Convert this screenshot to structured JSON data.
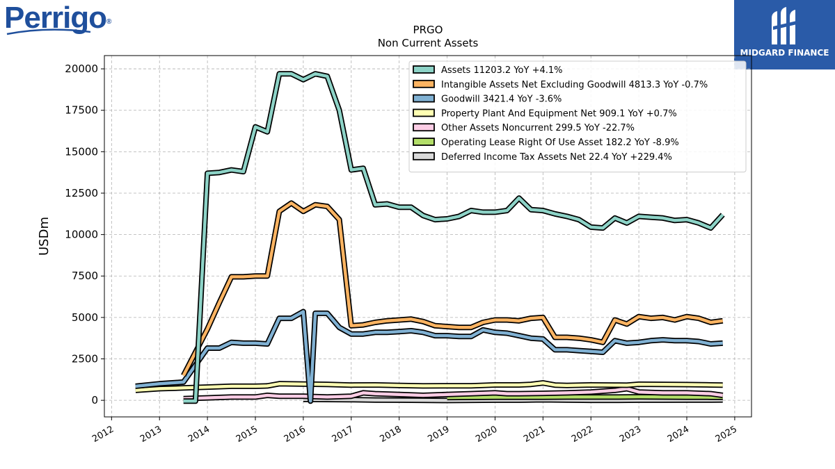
{
  "brand_left": {
    "name": "Perrigo",
    "reg_mark": "®",
    "color": "#1f4f9c"
  },
  "brand_right": {
    "name": "MIDGARD FINANCE",
    "bg_color": "#2a5ba8"
  },
  "chart_data": {
    "type": "line",
    "title": "PRGO",
    "subtitle": "Non Current  Assets",
    "ylabel": "USDm",
    "xlabel": "",
    "xlim": [
      2011.85,
      2025.35
    ],
    "ylim": [
      -1000,
      20800
    ],
    "yticks": [
      0,
      2500,
      5000,
      7500,
      10000,
      12500,
      15000,
      17500,
      20000
    ],
    "xticks": [
      2012,
      2013,
      2014,
      2015,
      2016,
      2017,
      2018,
      2019,
      2020,
      2021,
      2022,
      2023,
      2024,
      2025
    ],
    "grid": true,
    "legend_position": "top-right",
    "series": [
      {
        "name": "Assets",
        "legend": "Assets  11203.2 YoY +4.1%",
        "color": "#8dd3c7",
        "x": [
          2013.5,
          2013.75,
          2014.0,
          2014.25,
          2014.5,
          2014.75,
          2015.0,
          2015.25,
          2015.5,
          2015.75,
          2016.0,
          2016.25,
          2016.5,
          2016.75,
          2017.0,
          2017.25,
          2017.5,
          2017.75,
          2018.0,
          2018.25,
          2018.5,
          2018.75,
          2019.0,
          2019.25,
          2019.5,
          2019.75,
          2020.0,
          2020.25,
          2020.5,
          2020.75,
          2021.0,
          2021.25,
          2021.5,
          2021.75,
          2022.0,
          2022.25,
          2022.5,
          2022.75,
          2023.0,
          2023.25,
          2023.5,
          2023.75,
          2024.0,
          2024.25,
          2024.5,
          2024.75
        ],
        "y": [
          -50,
          -50,
          13700,
          13750,
          13900,
          13800,
          16500,
          16200,
          19700,
          19700,
          19350,
          19700,
          19550,
          17500,
          13900,
          14000,
          11800,
          11850,
          11650,
          11650,
          11150,
          10900,
          10950,
          11100,
          11450,
          11350,
          11350,
          11450,
          12200,
          11500,
          11450,
          11250,
          11100,
          10900,
          10450,
          10400,
          11000,
          10700,
          11100,
          11050,
          11000,
          10850,
          10900,
          10700,
          10400,
          11200
        ]
      },
      {
        "name": "Intangible Assets Net Excluding Goodwill",
        "legend": "Intangible Assets Net Excluding Goodwill  4813.3 YoY -0.7%",
        "color": "#fdb462",
        "x": [
          2013.5,
          2014.0,
          2014.25,
          2014.5,
          2014.75,
          2015.0,
          2015.25,
          2015.5,
          2015.75,
          2016.0,
          2016.25,
          2016.5,
          2016.75,
          2017.0,
          2017.25,
          2017.5,
          2017.75,
          2018.0,
          2018.25,
          2018.5,
          2018.75,
          2019.0,
          2019.25,
          2019.5,
          2019.75,
          2020.0,
          2020.25,
          2020.5,
          2020.75,
          2021.0,
          2021.25,
          2021.5,
          2021.75,
          2022.0,
          2022.25,
          2022.5,
          2022.75,
          2023.0,
          2023.25,
          2023.5,
          2023.75,
          2024.0,
          2024.25,
          2024.5,
          2024.75
        ],
        "y": [
          1500,
          4300,
          5900,
          7450,
          7450,
          7500,
          7500,
          11400,
          11900,
          11400,
          11800,
          11700,
          10900,
          4500,
          4550,
          4700,
          4800,
          4850,
          4900,
          4750,
          4500,
          4450,
          4400,
          4400,
          4700,
          4850,
          4850,
          4800,
          4950,
          5000,
          3800,
          3800,
          3750,
          3650,
          3500,
          4850,
          4600,
          5050,
          4950,
          5000,
          4850,
          5050,
          4950,
          4700,
          4800
        ]
      },
      {
        "name": "Goodwill",
        "legend": "Goodwill  3421.4 YoY -3.6%",
        "color": "#80b1d3",
        "x": [
          2012.5,
          2013.0,
          2013.5,
          2014.0,
          2014.25,
          2014.5,
          2014.75,
          2015.0,
          2015.25,
          2015.5,
          2015.75,
          2016.0,
          2016.15,
          2016.25,
          2016.5,
          2016.75,
          2017.0,
          2017.25,
          2017.5,
          2017.75,
          2018.0,
          2018.25,
          2018.5,
          2018.75,
          2019.0,
          2019.25,
          2019.5,
          2019.75,
          2020.0,
          2020.25,
          2020.5,
          2020.75,
          2021.0,
          2021.25,
          2021.5,
          2021.75,
          2022.0,
          2022.25,
          2022.5,
          2022.75,
          2023.0,
          2023.25,
          2023.5,
          2023.75,
          2024.0,
          2024.25,
          2024.5,
          2024.75
        ],
        "y": [
          850,
          1000,
          1100,
          3150,
          3150,
          3500,
          3450,
          3450,
          3400,
          4950,
          4950,
          5350,
          -50,
          5250,
          5250,
          4400,
          4000,
          4000,
          4100,
          4100,
          4150,
          4200,
          4100,
          3900,
          3900,
          3850,
          3850,
          4250,
          4100,
          4050,
          3900,
          3750,
          3700,
          3050,
          3050,
          3000,
          2950,
          2900,
          3600,
          3450,
          3500,
          3600,
          3650,
          3600,
          3600,
          3550,
          3400,
          3450
        ]
      },
      {
        "name": "Property Plant And Equipment Net",
        "legend": "Property Plant And Equipment Net  909.1 YoY +0.7%",
        "color": "#ffffb3",
        "x": [
          2012.5,
          2013.0,
          2013.5,
          2014.0,
          2014.5,
          2015.0,
          2015.25,
          2015.5,
          2016.0,
          2016.5,
          2017.0,
          2017.5,
          2018.0,
          2018.5,
          2019.0,
          2019.5,
          2020.0,
          2020.5,
          2020.75,
          2021.0,
          2021.25,
          2021.5,
          2022.0,
          2022.5,
          2022.75,
          2023.0,
          2023.5,
          2024.0,
          2024.5,
          2024.75
        ],
        "y": [
          600,
          700,
          750,
          800,
          850,
          850,
          870,
          1000,
          980,
          960,
          920,
          930,
          900,
          870,
          880,
          880,
          930,
          930,
          960,
          1050,
          920,
          900,
          930,
          920,
          910,
          970,
          960,
          950,
          930,
          920
        ]
      },
      {
        "name": "Other Assets Noncurrent",
        "legend": "Other Assets Noncurrent  299.5 YoY -22.7%",
        "color": "#fccde5",
        "x": [
          2013.5,
          2014.0,
          2014.5,
          2015.0,
          2015.25,
          2015.5,
          2016.0,
          2016.5,
          2017.0,
          2017.25,
          2017.5,
          2018.0,
          2018.5,
          2019.0,
          2019.5,
          2020.0,
          2020.25,
          2020.5,
          2021.0,
          2021.5,
          2022.0,
          2022.5,
          2022.75,
          2023.0,
          2023.5,
          2024.0,
          2024.5,
          2024.75
        ],
        "y": [
          100,
          150,
          200,
          200,
          300,
          250,
          250,
          200,
          250,
          450,
          400,
          350,
          300,
          350,
          400,
          450,
          400,
          400,
          420,
          450,
          500,
          600,
          700,
          500,
          450,
          450,
          400,
          300
        ]
      },
      {
        "name": "Operating Lease Right Of Use Asset",
        "legend": "Operating Lease Right Of Use Asset  182.2 YoY -8.9%",
        "color": "#b3de69",
        "x": [
          2019.0,
          2019.5,
          2020.0,
          2020.5,
          2021.0,
          2021.5,
          2022.0,
          2022.5,
          2023.0,
          2023.5,
          2024.0,
          2024.5,
          2024.75
        ],
        "y": [
          170,
          180,
          190,
          190,
          190,
          200,
          200,
          200,
          210,
          200,
          190,
          185,
          182
        ]
      },
      {
        "name": "Deferred Income Tax Assets Net",
        "legend": "Deferred Income Tax Assets Net  22.4 YoY +229.4%",
        "color": "#d9d9d9",
        "x": [
          2016.0,
          2016.5,
          2017.0,
          2017.5,
          2018.0,
          2018.5,
          2019.0,
          2019.5,
          2020.0,
          2020.5,
          2021.0,
          2021.5,
          2022.0,
          2022.5,
          2023.0,
          2023.5,
          2024.0,
          2024.5,
          2024.75
        ],
        "y": [
          60,
          50,
          40,
          20,
          10,
          0,
          -10,
          0,
          10,
          10,
          30,
          20,
          0,
          0,
          10,
          10,
          20,
          20,
          22
        ]
      }
    ]
  }
}
